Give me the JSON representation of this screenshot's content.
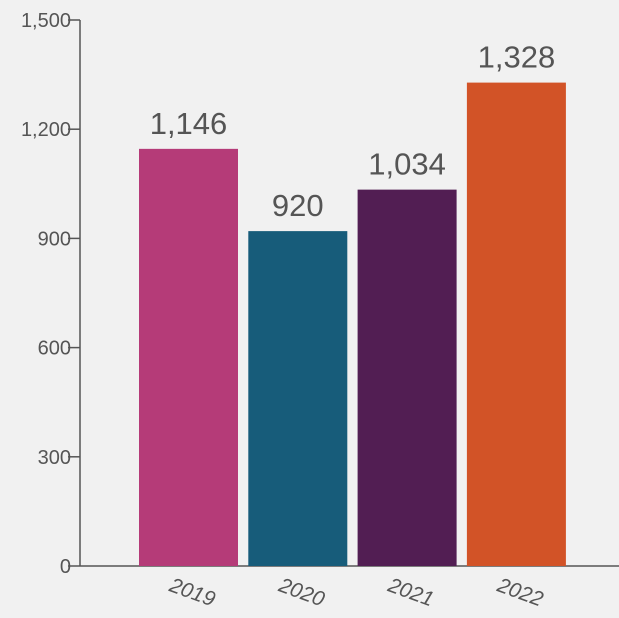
{
  "chart_data": {
    "type": "bar",
    "categories": [
      "2019",
      "2020",
      "2021",
      "2022"
    ],
    "values": [
      1146,
      920,
      1034,
      1328
    ],
    "data_labels": [
      "1,146",
      "920",
      "1,034",
      "1,328"
    ],
    "bar_colors": [
      "#b53b78",
      "#175c7a",
      "#521e53",
      "#d25327"
    ],
    "title": "",
    "xlabel": "",
    "ylabel": "",
    "ylim": [
      0,
      1500
    ],
    "yticks": [
      0,
      300,
      600,
      900,
      1200,
      1500
    ],
    "ytick_labels": [
      "0",
      "300",
      "600",
      "900",
      "1,200",
      "1,500"
    ],
    "grid": false,
    "legend": "none"
  }
}
